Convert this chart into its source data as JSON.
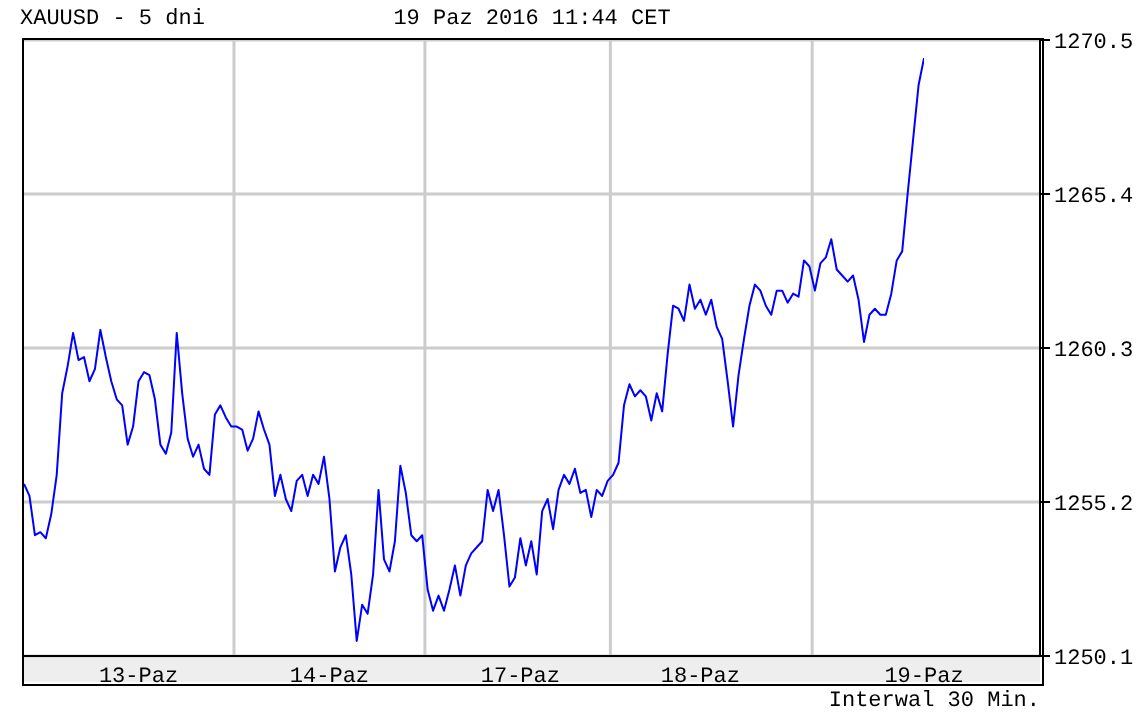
{
  "chart_data": {
    "type": "line",
    "title": "XAUUSD - 5 dni",
    "subtitle": "19 Paz 2016 11:44 CET",
    "annotations": [
      "Interwal 30 Min."
    ],
    "categories": [
      null,
      null,
      null,
      null,
      null,
      null,
      null,
      null,
      null,
      null,
      null,
      null,
      null,
      null,
      null,
      null,
      null,
      null,
      null,
      null,
      null,
      "13-Paz",
      null,
      null,
      null,
      null,
      null,
      null,
      null,
      null,
      null,
      null,
      null,
      null,
      null,
      null,
      null,
      null,
      null,
      null,
      null,
      null,
      null,
      null,
      null,
      null,
      null,
      null,
      null,
      null,
      null,
      null,
      null,
      null,
      null,
      null,
      "14-Paz",
      null,
      null,
      null,
      null,
      null,
      null,
      null,
      null,
      null,
      null,
      null,
      null,
      null,
      null,
      null,
      null,
      null,
      null,
      null,
      null,
      null,
      null,
      null,
      null,
      null,
      null,
      null,
      null,
      null,
      null,
      null,
      null,
      null,
      null,
      "17-Paz",
      null,
      null,
      null,
      null,
      null,
      null,
      null,
      null,
      null,
      null,
      null,
      null,
      null,
      null,
      null,
      null,
      null,
      null,
      null,
      null,
      null,
      null,
      null,
      null,
      null,
      null,
      null,
      null,
      null,
      null,
      null,
      null,
      "18-Paz",
      null,
      null,
      null,
      null,
      null,
      null,
      null,
      null,
      null,
      null,
      null,
      null,
      null,
      null,
      null,
      null,
      null,
      null,
      null,
      null,
      null,
      null,
      null,
      null,
      null,
      null,
      null,
      null,
      null,
      null,
      null,
      null,
      null,
      null,
      null,
      null,
      null,
      null,
      null,
      null,
      "19-Paz"
    ],
    "values": [
      1255.8,
      1255.4,
      1254.1,
      1254.2,
      1254.0,
      1254.8,
      1256.1,
      1258.8,
      1259.7,
      1260.8,
      1259.9,
      1260.0,
      1259.2,
      1259.6,
      1260.9,
      1260.0,
      1259.2,
      1258.6,
      1258.4,
      1257.1,
      1257.7,
      1259.2,
      1259.5,
      1259.4,
      1258.6,
      1257.1,
      1256.8,
      1257.5,
      1260.8,
      1258.8,
      1257.3,
      1256.7,
      1257.1,
      1256.3,
      1256.1,
      1258.1,
      1258.4,
      1258.0,
      1257.7,
      1257.7,
      1257.6,
      1256.9,
      1257.3,
      1258.2,
      1257.6,
      1257.1,
      1255.4,
      1256.1,
      1255.3,
      1254.9,
      1255.9,
      1256.1,
      1255.4,
      1256.1,
      1255.8,
      1256.7,
      1255.3,
      1252.9,
      1253.7,
      1254.1,
      1252.8,
      1250.6,
      1251.8,
      1251.5,
      1252.8,
      1255.6,
      1253.3,
      1252.9,
      1253.9,
      1256.4,
      1255.5,
      1254.1,
      1253.9,
      1254.1,
      1252.3,
      1251.6,
      1252.1,
      1251.6,
      1252.3,
      1253.1,
      1252.1,
      1253.1,
      1253.5,
      1253.7,
      1253.9,
      1255.6,
      1254.9,
      1255.6,
      1254.1,
      1252.4,
      1252.7,
      1254.0,
      1253.1,
      1253.9,
      1252.8,
      1254.9,
      1255.3,
      1254.3,
      1255.6,
      1256.1,
      1255.8,
      1256.3,
      1255.5,
      1255.6,
      1254.7,
      1255.6,
      1255.4,
      1255.9,
      1256.1,
      1256.5,
      1258.4,
      1259.1,
      1258.7,
      1258.9,
      1258.7,
      1257.9,
      1258.8,
      1258.2,
      1260.1,
      1261.7,
      1261.6,
      1261.2,
      1262.4,
      1261.6,
      1261.9,
      1261.4,
      1261.9,
      1261.0,
      1260.6,
      1259.2,
      1257.7,
      1259.4,
      1260.6,
      1261.7,
      1262.4,
      1262.2,
      1261.7,
      1261.4,
      1262.2,
      1262.2,
      1261.8,
      1262.1,
      1262.0,
      1263.2,
      1263.0,
      1262.2,
      1263.1,
      1263.3,
      1263.9,
      1262.9,
      1262.7,
      1262.5,
      1262.7,
      1261.9,
      1260.5,
      1261.4,
      1261.6,
      1261.4,
      1261.4,
      1262.1,
      1263.2,
      1263.5,
      1265.4,
      1267.2,
      1269.0,
      1269.9
    ],
    "color": "#0000ff",
    "ylim": [
      1250.1,
      1270.5
    ],
    "yticks": [
      1250.1,
      1255.2,
      1260.3,
      1265.4,
      1270.5
    ],
    "grid": true
  }
}
